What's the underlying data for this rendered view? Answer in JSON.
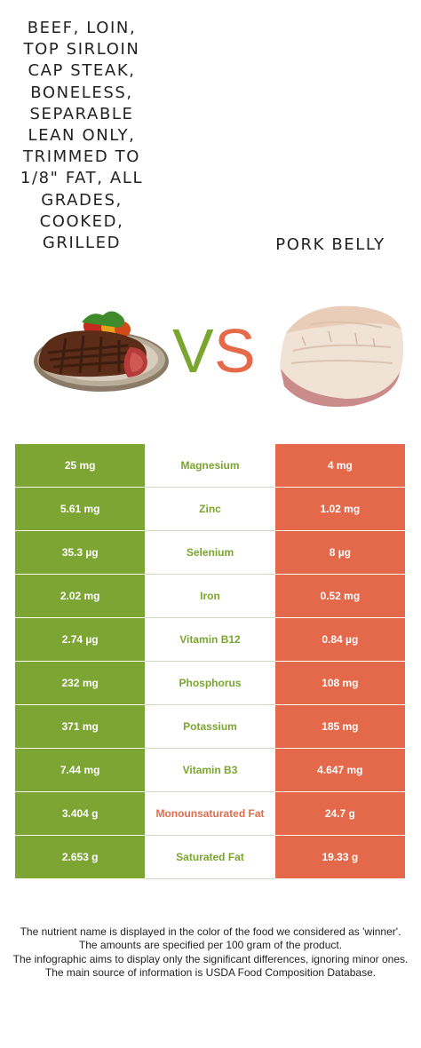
{
  "left_food": {
    "name": "Beef, loin, top sirloin cap steak, boneless, separable lean only, trimmed to 1/8\" fat, all grades, cooked, grilled",
    "title_lines": [
      "BEEF, LOIN,",
      "TOP SIRLOIN",
      "CAP STEAK,",
      "BONELESS,",
      "SEPARABLE",
      "LEAN ONLY,",
      "TRIMMED TO",
      "1/8\" FAT, ALL",
      "GRADES,",
      "COOKED,",
      "GRILLED"
    ],
    "color": "#7ca534",
    "image_icon": "steak-plate-icon"
  },
  "right_food": {
    "title": "PORK BELLY",
    "color": "#e4694b",
    "image_icon": "pork-belly-icon"
  },
  "vs": {
    "v": "V",
    "s": "S"
  },
  "rows": [
    {
      "left": "25 mg",
      "nutrient": "Magnesium",
      "right": "4 mg",
      "winner": "left"
    },
    {
      "left": "5.61 mg",
      "nutrient": "Zinc",
      "right": "1.02 mg",
      "winner": "left"
    },
    {
      "left": "35.3 µg",
      "nutrient": "Selenium",
      "right": "8 µg",
      "winner": "left"
    },
    {
      "left": "2.02 mg",
      "nutrient": "Iron",
      "right": "0.52 mg",
      "winner": "left"
    },
    {
      "left": "2.74 µg",
      "nutrient": "Vitamin B12",
      "right": "0.84 µg",
      "winner": "left"
    },
    {
      "left": "232 mg",
      "nutrient": "Phosphorus",
      "right": "108 mg",
      "winner": "left"
    },
    {
      "left": "371 mg",
      "nutrient": "Potassium",
      "right": "185 mg",
      "winner": "left"
    },
    {
      "left": "7.44 mg",
      "nutrient": "Vitamin B3",
      "right": "4.647 mg",
      "winner": "left"
    },
    {
      "left": "3.404 g",
      "nutrient": "Monounsaturated Fat",
      "right": "24.7 g",
      "winner": "right"
    },
    {
      "left": "2.653 g",
      "nutrient": "Saturated Fat",
      "right": "19.33 g",
      "winner": "left"
    }
  ],
  "footer": {
    "line1": "The nutrient name is displayed in the color of the food we considered as 'winner'.",
    "line2": "The amounts are specified per 100 gram of the product.",
    "line3": "The infographic aims to display only the significant differences, ignoring minor ones.",
    "line4": "The main source of information is USDA Food Composition Database."
  }
}
